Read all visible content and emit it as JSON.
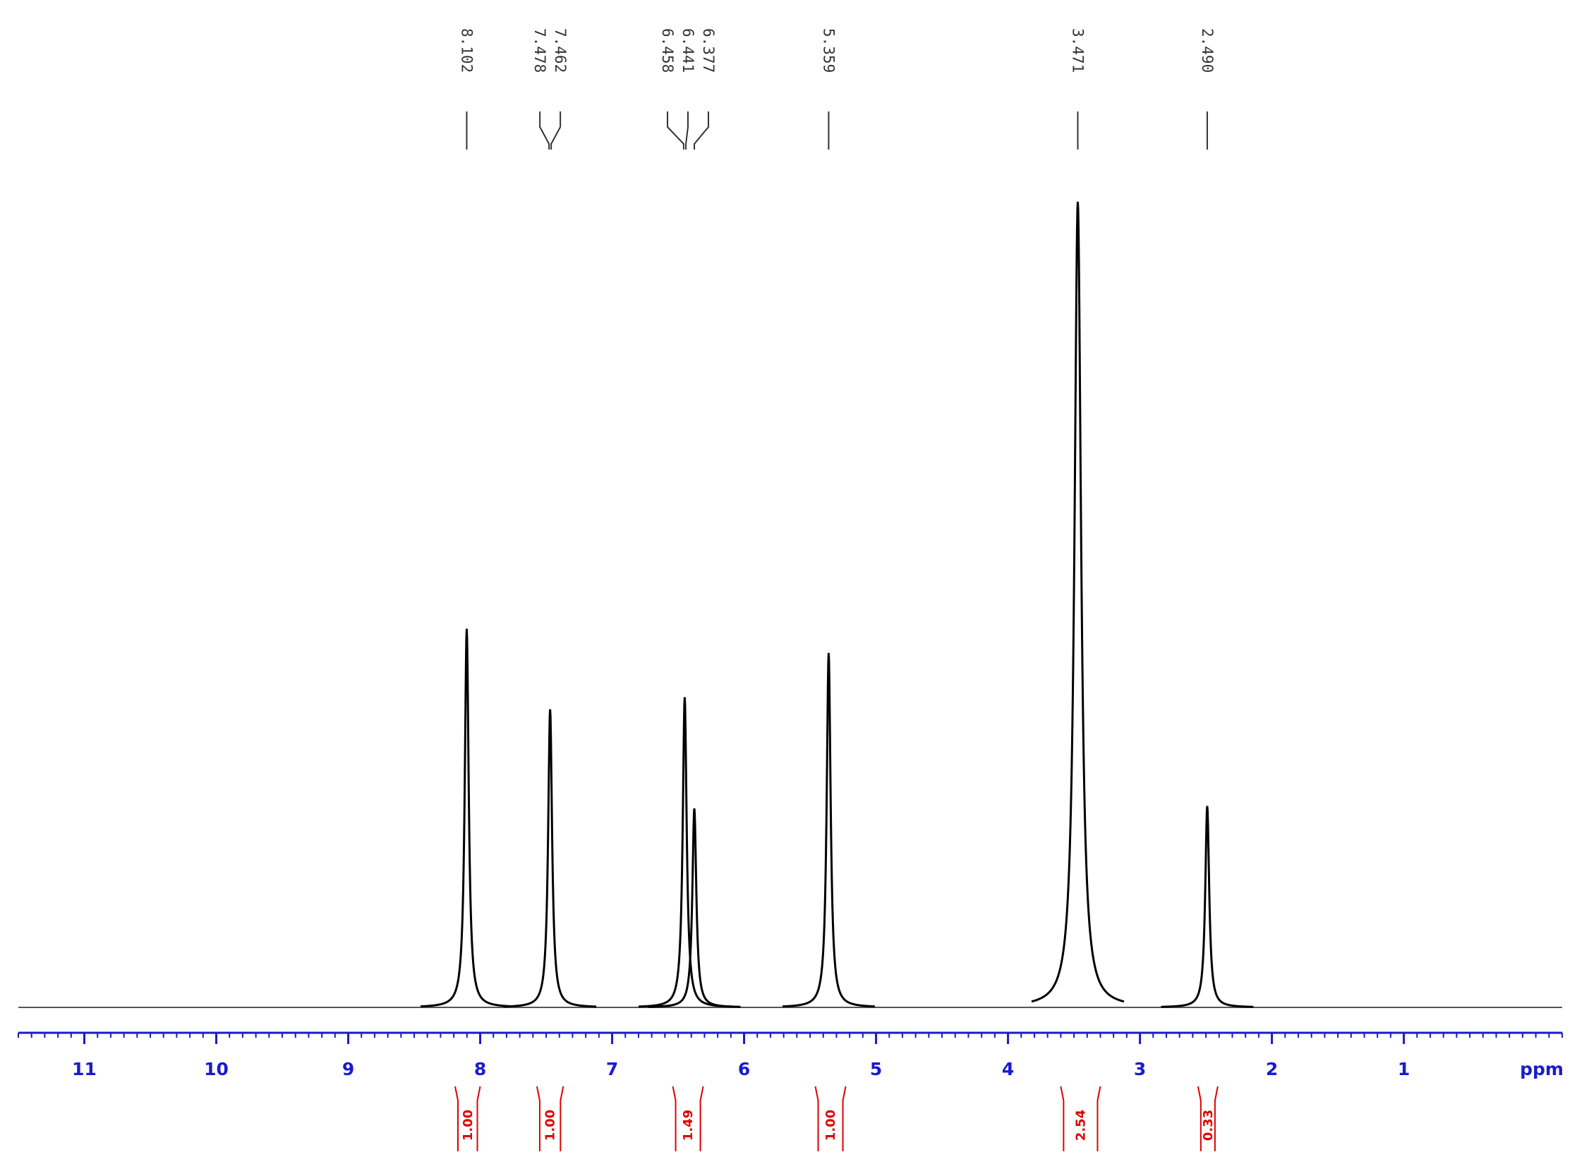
{
  "chart_data": {
    "type": "spectrum",
    "x_label": "ppm",
    "xlim": [
      11.5,
      -0.2
    ],
    "xticks": [
      11,
      10,
      9,
      8,
      7,
      6,
      5,
      4,
      3,
      2,
      1
    ],
    "ylim": [
      0,
      100
    ],
    "line_color": "#000000",
    "axis_color": "#1a1ad0",
    "integral_color": "#e00000",
    "signals": [
      {
        "shift": 8.102,
        "height": 47
      },
      {
        "shift": 7.47,
        "height": 37
      },
      {
        "shift": 6.45,
        "height": 38.5
      },
      {
        "shift": 6.377,
        "height": 24.7
      },
      {
        "shift": 5.359,
        "height": 44
      },
      {
        "shift": 3.471,
        "height": 100
      },
      {
        "shift": 2.49,
        "height": 25
      }
    ],
    "peak_labels": [
      8.102,
      7.478,
      7.462,
      6.458,
      6.441,
      6.377,
      5.359,
      3.471,
      {
        "value": 2.49,
        "label": "2.490"
      }
    ],
    "integrals": [
      {
        "from": 8.19,
        "to": 8.0,
        "value": 1,
        "label": "1.00"
      },
      {
        "from": 7.57,
        "to": 7.37,
        "value": 1,
        "label": "1.00"
      },
      {
        "from": 6.54,
        "to": 6.31,
        "value": 1.49,
        "label": "1.49"
      },
      {
        "from": 5.46,
        "to": 5.23,
        "value": 1,
        "label": "1.00"
      },
      {
        "from": 3.6,
        "to": 3.3,
        "value": 2.54,
        "label": "2.54"
      },
      {
        "from": 2.56,
        "to": 2.41,
        "value": 0.33,
        "label": "0.33"
      }
    ]
  }
}
